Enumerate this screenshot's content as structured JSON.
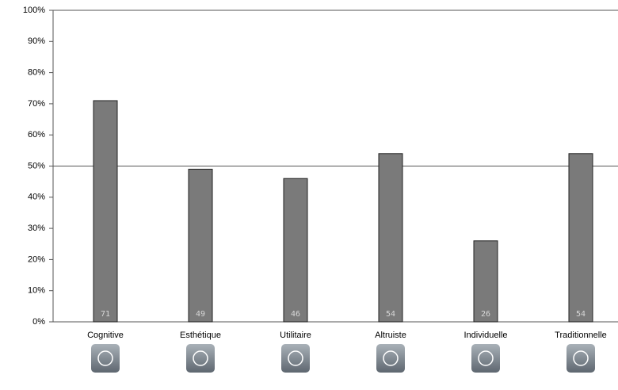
{
  "chart_data": {
    "type": "bar",
    "categories": [
      "Cognitive",
      "Esthétique",
      "Utilitaire",
      "Altruiste",
      "Individuelle",
      "Traditionnelle"
    ],
    "values": [
      71,
      49,
      46,
      54,
      26,
      54
    ],
    "color": "#7a7a7a",
    "ylim": [
      0,
      100
    ],
    "yticks": [
      {
        "value": 0,
        "label": "0%"
      },
      {
        "value": 10,
        "label": "10%"
      },
      {
        "value": 20,
        "label": "20%"
      },
      {
        "value": 30,
        "label": "30%"
      },
      {
        "value": 40,
        "label": "40%"
      },
      {
        "value": 50,
        "label": "50%"
      },
      {
        "value": 60,
        "label": "60%"
      },
      {
        "value": 70,
        "label": "70%"
      },
      {
        "value": 80,
        "label": "80%"
      },
      {
        "value": 90,
        "label": "90%"
      },
      {
        "value": 100,
        "label": "100%"
      }
    ],
    "reference_lines": [
      0,
      50,
      100
    ]
  }
}
